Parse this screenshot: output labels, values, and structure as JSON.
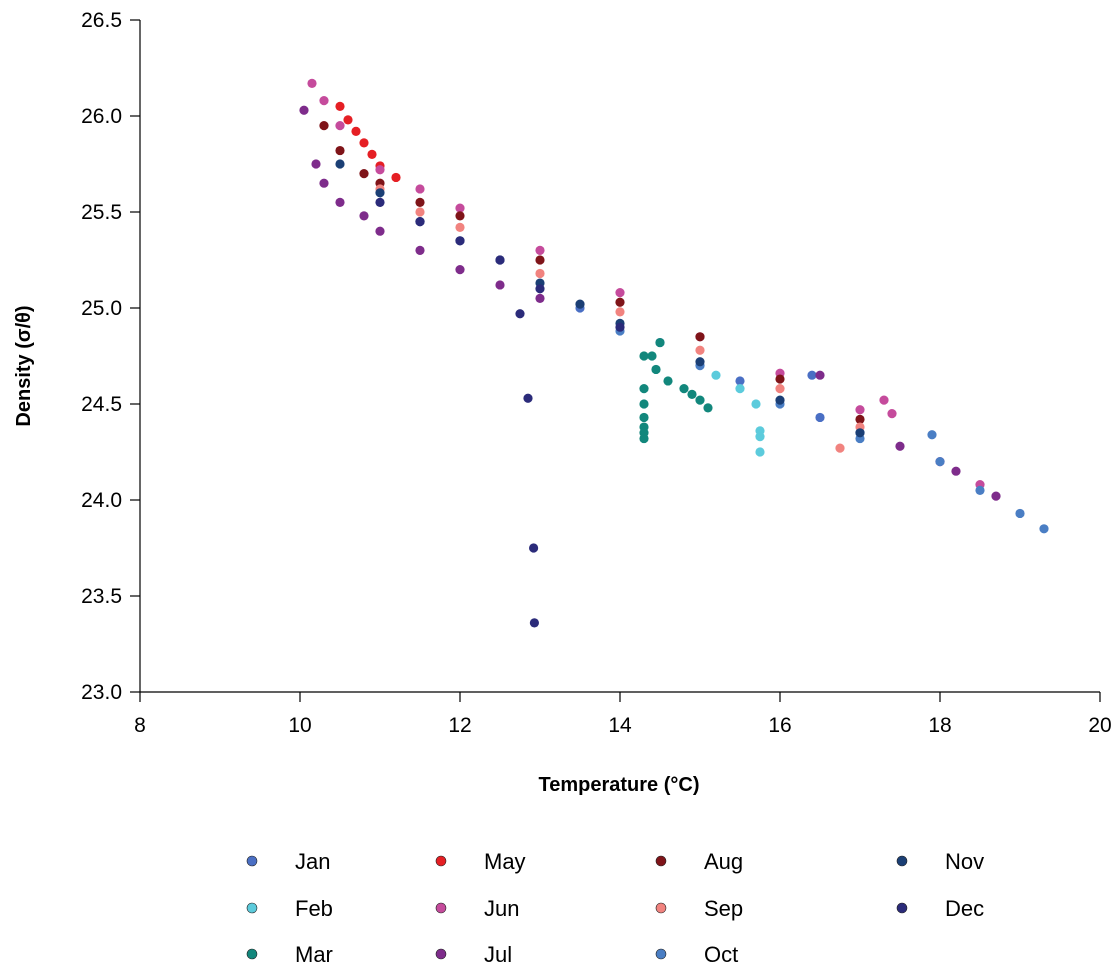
{
  "chart_data": {
    "type": "scatter",
    "title": "",
    "xlabel": "Temperature (°C)",
    "ylabel": "Density (σ/θ)",
    "xlim": [
      8,
      20
    ],
    "ylim": [
      23.0,
      26.5
    ],
    "x_ticks": [
      "8",
      "10",
      "12",
      "14",
      "16",
      "18",
      "20"
    ],
    "y_ticks": [
      "23.0",
      "23.5",
      "24.0",
      "24.5",
      "25.0",
      "25.5",
      "26.0",
      "26.5"
    ],
    "grid": false,
    "legend_position": "bottom",
    "series": [
      {
        "name": "Jan",
        "color": "#4a6fc4",
        "points": [
          [
            13.5,
            25.0
          ],
          [
            14.5,
            24.82
          ],
          [
            15.5,
            24.62
          ],
          [
            16.5,
            24.43
          ],
          [
            16.4,
            24.65
          ],
          [
            17.0,
            24.35
          ]
        ]
      },
      {
        "name": "Feb",
        "color": "#5ccbdc",
        "points": [
          [
            15.2,
            24.65
          ],
          [
            15.5,
            24.58
          ],
          [
            15.7,
            24.5
          ],
          [
            15.75,
            24.36
          ],
          [
            15.75,
            24.33
          ],
          [
            15.75,
            24.25
          ]
        ]
      },
      {
        "name": "Mar",
        "color": "#12877c",
        "points": [
          [
            14.3,
            24.75
          ],
          [
            14.3,
            24.58
          ],
          [
            14.3,
            24.5
          ],
          [
            14.3,
            24.43
          ],
          [
            14.3,
            24.38
          ],
          [
            14.3,
            24.35
          ],
          [
            14.3,
            24.32
          ],
          [
            14.45,
            24.68
          ],
          [
            14.5,
            24.82
          ],
          [
            14.6,
            24.62
          ],
          [
            14.8,
            24.58
          ],
          [
            14.9,
            24.55
          ],
          [
            15.0,
            24.52
          ],
          [
            15.1,
            24.48
          ],
          [
            14.4,
            24.75
          ]
        ]
      },
      {
        "name": "May",
        "color": "#e51f24",
        "points": [
          [
            10.5,
            26.05
          ],
          [
            10.6,
            25.98
          ],
          [
            10.7,
            25.92
          ],
          [
            10.8,
            25.86
          ],
          [
            10.9,
            25.8
          ],
          [
            11.0,
            25.74
          ],
          [
            11.2,
            25.68
          ]
        ]
      },
      {
        "name": "Jun",
        "color": "#c54b9c",
        "points": [
          [
            10.15,
            26.17
          ],
          [
            10.3,
            26.08
          ],
          [
            10.5,
            25.95
          ],
          [
            11.0,
            25.72
          ],
          [
            11.5,
            25.62
          ],
          [
            12.0,
            25.52
          ],
          [
            13.0,
            25.3
          ],
          [
            14.0,
            25.08
          ],
          [
            15.0,
            24.85
          ],
          [
            16.0,
            24.66
          ],
          [
            17.0,
            24.47
          ],
          [
            17.3,
            24.52
          ],
          [
            17.4,
            24.45
          ],
          [
            18.0,
            24.2
          ],
          [
            18.5,
            24.08
          ]
        ]
      },
      {
        "name": "Jul",
        "color": "#7e2c8b",
        "points": [
          [
            10.05,
            26.03
          ],
          [
            10.2,
            25.75
          ],
          [
            10.3,
            25.65
          ],
          [
            10.5,
            25.55
          ],
          [
            10.8,
            25.48
          ],
          [
            11.0,
            25.4
          ],
          [
            11.5,
            25.3
          ],
          [
            12.0,
            25.2
          ],
          [
            12.5,
            25.12
          ],
          [
            13.0,
            25.05
          ],
          [
            16.5,
            24.65
          ],
          [
            17.5,
            24.28
          ],
          [
            18.2,
            24.15
          ],
          [
            18.7,
            24.02
          ]
        ]
      },
      {
        "name": "Aug",
        "color": "#7f1419",
        "points": [
          [
            10.3,
            25.95
          ],
          [
            10.5,
            25.82
          ],
          [
            10.8,
            25.7
          ],
          [
            11.0,
            25.65
          ],
          [
            11.5,
            25.55
          ],
          [
            12.0,
            25.48
          ],
          [
            13.0,
            25.25
          ],
          [
            14.0,
            25.03
          ],
          [
            15.0,
            24.85
          ],
          [
            16.0,
            24.63
          ],
          [
            17.0,
            24.42
          ]
        ]
      },
      {
        "name": "Sep",
        "color": "#f1837f",
        "points": [
          [
            11.0,
            25.62
          ],
          [
            11.5,
            25.5
          ],
          [
            12.0,
            25.42
          ],
          [
            13.0,
            25.18
          ],
          [
            14.0,
            24.98
          ],
          [
            15.0,
            24.78
          ],
          [
            16.0,
            24.58
          ],
          [
            16.75,
            24.27
          ],
          [
            17.0,
            24.38
          ]
        ]
      },
      {
        "name": "Oct",
        "color": "#4a7ec4",
        "points": [
          [
            14.0,
            24.88
          ],
          [
            15.0,
            24.7
          ],
          [
            16.0,
            24.5
          ],
          [
            17.0,
            24.32
          ],
          [
            17.9,
            24.34
          ],
          [
            18.0,
            24.2
          ],
          [
            18.5,
            24.05
          ],
          [
            19.0,
            23.93
          ],
          [
            19.3,
            23.85
          ]
        ]
      },
      {
        "name": "Nov",
        "color": "#1b3f75",
        "points": [
          [
            10.5,
            25.75
          ],
          [
            11.0,
            25.6
          ],
          [
            11.5,
            25.45
          ],
          [
            12.0,
            25.35
          ],
          [
            12.5,
            25.25
          ],
          [
            13.0,
            25.13
          ],
          [
            13.5,
            25.02
          ],
          [
            14.0,
            24.92
          ],
          [
            15.0,
            24.72
          ],
          [
            16.0,
            24.52
          ],
          [
            17.0,
            24.35
          ]
        ]
      },
      {
        "name": "Dec",
        "color": "#2b2b7a",
        "points": [
          [
            11.0,
            25.55
          ],
          [
            11.5,
            25.45
          ],
          [
            12.0,
            25.35
          ],
          [
            12.5,
            25.25
          ],
          [
            12.75,
            24.97
          ],
          [
            12.85,
            24.53
          ],
          [
            12.92,
            23.75
          ],
          [
            12.93,
            23.36
          ],
          [
            13.0,
            25.1
          ],
          [
            14.0,
            24.9
          ]
        ]
      }
    ]
  }
}
